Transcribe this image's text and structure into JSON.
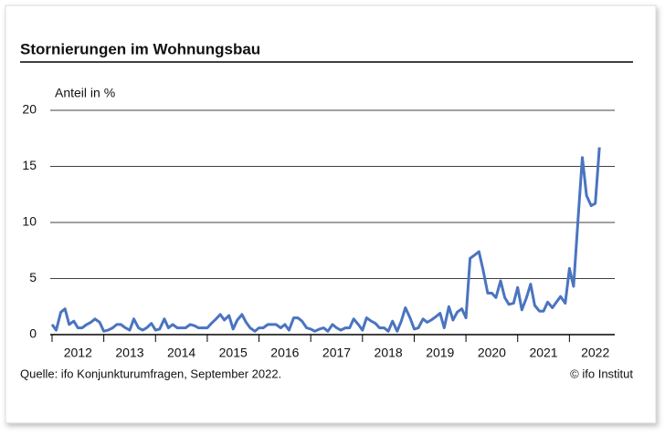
{
  "chart_data": {
    "type": "line",
    "title": "Stornierungen im Wohnungsbau",
    "y_label": "Anteil in %",
    "source": "Quelle: ifo Konjunkturumfragen, September 2022.",
    "credit": "© ifo Institut",
    "xlim": [
      2012,
      2023
    ],
    "xticks": [
      2012,
      2013,
      2014,
      2015,
      2016,
      2017,
      2018,
      2019,
      2020,
      2021,
      2022
    ],
    "ylim": [
      0,
      20
    ],
    "yticks": [
      0,
      5,
      10,
      15,
      20
    ],
    "grid": true,
    "x": [
      2012,
      2012.08,
      2012.17,
      2012.25,
      2012.33,
      2012.42,
      2012.5,
      2012.58,
      2012.67,
      2012.75,
      2012.83,
      2012.92,
      2013,
      2013.08,
      2013.17,
      2013.25,
      2013.33,
      2013.42,
      2013.5,
      2013.58,
      2013.67,
      2013.75,
      2013.83,
      2013.92,
      2014,
      2014.08,
      2014.17,
      2014.25,
      2014.33,
      2014.42,
      2014.5,
      2014.58,
      2014.67,
      2014.75,
      2014.83,
      2014.92,
      2015,
      2015.08,
      2015.17,
      2015.25,
      2015.33,
      2015.42,
      2015.5,
      2015.58,
      2015.67,
      2015.75,
      2015.83,
      2015.92,
      2016,
      2016.08,
      2016.17,
      2016.25,
      2016.33,
      2016.42,
      2016.5,
      2016.58,
      2016.67,
      2016.75,
      2016.83,
      2016.92,
      2017,
      2017.08,
      2017.17,
      2017.25,
      2017.33,
      2017.42,
      2017.5,
      2017.58,
      2017.67,
      2017.75,
      2017.83,
      2017.92,
      2018,
      2018.08,
      2018.17,
      2018.25,
      2018.33,
      2018.42,
      2018.5,
      2018.58,
      2018.67,
      2018.75,
      2018.83,
      2018.92,
      2019,
      2019.08,
      2019.17,
      2019.25,
      2019.33,
      2019.42,
      2019.5,
      2019.58,
      2019.67,
      2019.75,
      2019.83,
      2019.92,
      2020,
      2020.08,
      2020.17,
      2020.25,
      2020.33,
      2020.42,
      2020.5,
      2020.58,
      2020.67,
      2020.75,
      2020.83,
      2020.92,
      2021,
      2021.08,
      2021.17,
      2021.25,
      2021.33,
      2021.42,
      2021.5,
      2021.58,
      2021.67,
      2021.75,
      2021.83,
      2021.92,
      2022,
      2022.08,
      2022.17,
      2022.25,
      2022.33,
      2022.42,
      2022.5,
      2022.58
    ],
    "series": [
      {
        "name": "Anteil",
        "color": "#4a74c0",
        "values": [
          0.9,
          0.4,
          2.0,
          2.3,
          0.9,
          1.2,
          0.6,
          0.6,
          0.9,
          1.1,
          1.4,
          1.1,
          0.3,
          0.4,
          0.6,
          0.9,
          0.9,
          0.6,
          0.4,
          1.4,
          0.6,
          0.4,
          0.6,
          1.0,
          0.4,
          0.5,
          1.4,
          0.6,
          0.9,
          0.6,
          0.6,
          0.6,
          0.9,
          0.8,
          0.6,
          0.6,
          0.6,
          1.0,
          1.4,
          1.8,
          1.3,
          1.7,
          0.5,
          1.3,
          1.8,
          1.1,
          0.6,
          0.3,
          0.6,
          0.6,
          0.9,
          0.9,
          0.9,
          0.6,
          0.9,
          0.4,
          1.5,
          1.5,
          1.2,
          0.6,
          0.5,
          0.3,
          0.5,
          0.6,
          0.3,
          0.9,
          0.6,
          0.4,
          0.6,
          0.6,
          1.4,
          0.9,
          0.4,
          1.5,
          1.2,
          1.0,
          0.6,
          0.6,
          0.3,
          1.2,
          0.3,
          1.2,
          2.4,
          1.5,
          0.5,
          0.6,
          1.4,
          1.1,
          1.3,
          1.6,
          1.9,
          0.6,
          2.5,
          1.3,
          2.0,
          2.3,
          1.5,
          6.8,
          7.1,
          7.4,
          5.8,
          3.7,
          3.7,
          3.3,
          4.8,
          3.3,
          2.7,
          2.8,
          4.2,
          2.2,
          3.3,
          4.5,
          2.6,
          2.1,
          2.1,
          2.9,
          2.4,
          2.9,
          3.4,
          2.8,
          5.9,
          4.3,
          10.5,
          15.8,
          12.4,
          11.5,
          11.7,
          16.7
        ]
      }
    ]
  }
}
